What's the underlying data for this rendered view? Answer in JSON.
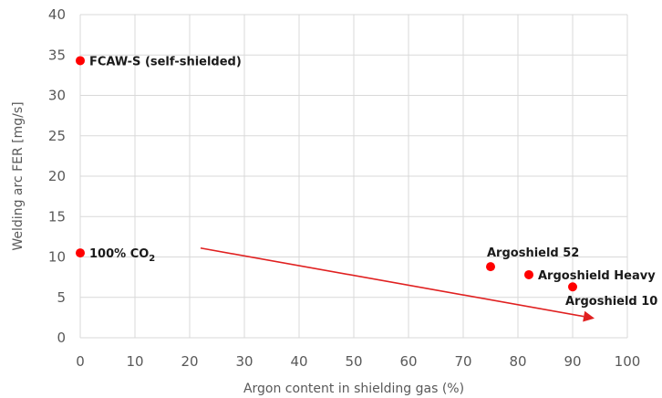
{
  "chart_data": {
    "type": "scatter",
    "title": "",
    "xlabel": "Argon content in shielding gas (%)",
    "ylabel": "Welding arc FER [mg/s]",
    "xlim": [
      0,
      100
    ],
    "ylim": [
      0,
      40
    ],
    "x_ticks": [
      "0",
      "10",
      "20",
      "30",
      "40",
      "50",
      "60",
      "70",
      "80",
      "90",
      "100"
    ],
    "y_ticks": [
      "0",
      "5",
      "10",
      "15",
      "20",
      "25",
      "30",
      "35",
      "40"
    ],
    "grid": true,
    "series_color": "#ff0000",
    "points": [
      {
        "label": "FCAW-S (self-shielded)",
        "x": 0,
        "y": 34.3,
        "label_side": "right"
      },
      {
        "label": "100% CO",
        "label_sub": "2",
        "x": 0,
        "y": 10.5,
        "label_side": "right"
      },
      {
        "label": "Argoshield 52",
        "x": 75,
        "y": 8.8,
        "label_side": "above"
      },
      {
        "label": "Argoshield Heavy",
        "x": 82,
        "y": 7.8,
        "label_side": "right"
      },
      {
        "label": "Argoshield 10",
        "x": 90,
        "y": 6.3,
        "label_side": "below"
      }
    ],
    "trend_arrow": {
      "from": {
        "x": 22,
        "y": 11.1
      },
      "to": {
        "x": 94,
        "y": 2.4
      },
      "color": "#e02020"
    }
  }
}
